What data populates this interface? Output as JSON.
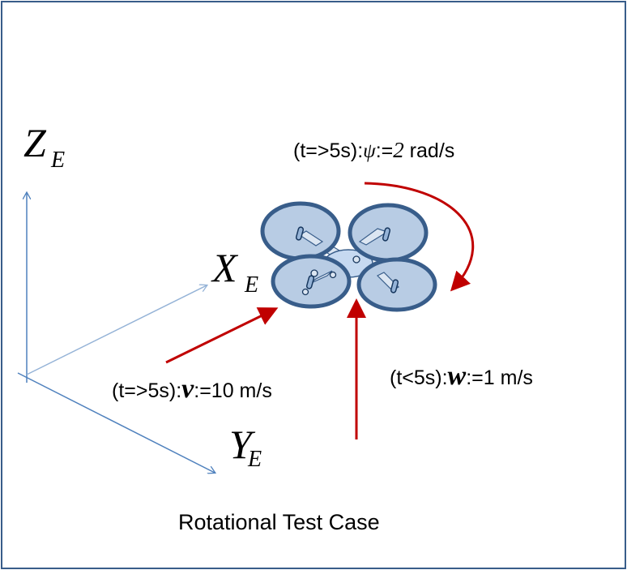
{
  "axes": {
    "z": {
      "letter": "Z",
      "sub": "E"
    },
    "x": {
      "letter": "X",
      "sub": "E"
    },
    "y": {
      "letter": "Y",
      "sub": "E"
    }
  },
  "annotations": {
    "yaw": {
      "prefix": "(t=>5s):",
      "symbol": "ψ",
      "assign": ":=",
      "value": "2",
      "unit": " rad/s"
    },
    "forward": {
      "prefix": "(t=>5s):",
      "symbol": "v",
      "rest": ":=10 m/s"
    },
    "vertical": {
      "prefix": "(t<5s):",
      "symbol": "w",
      "rest": ":=1 m/s"
    }
  },
  "caption": "Rotational Test Case",
  "colors": {
    "frame": "#385d8a",
    "axis": "#4f81bd",
    "arrow_red": "#c00000",
    "rotor_fill": "#b8cce4",
    "rotor_stroke": "#385d8a"
  }
}
